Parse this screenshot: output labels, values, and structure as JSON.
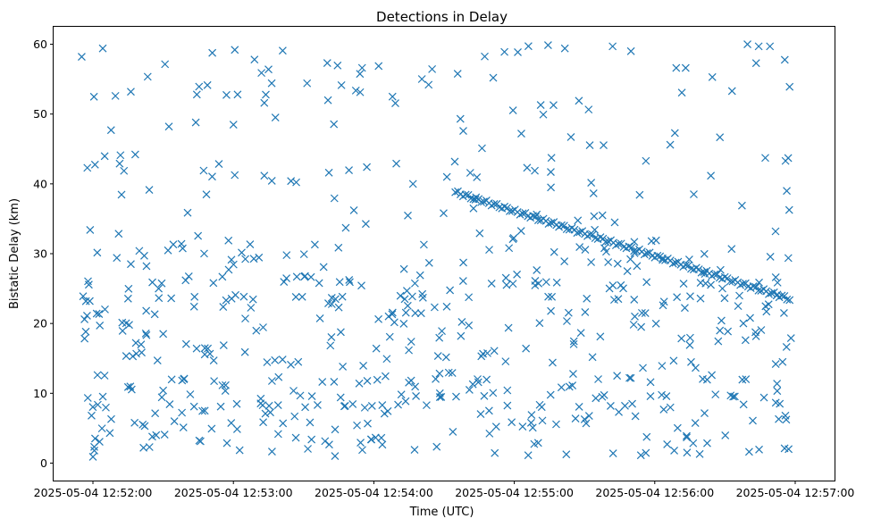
{
  "chart_data": {
    "type": "scatter",
    "title": "Detections in Delay",
    "xlabel": "Time (UTC)",
    "ylabel": "Bistatic Delay (km)",
    "marker": "x",
    "color": "#1f77b4",
    "x_unit": "minutes after 2025-05-04 12:51:00 UTC",
    "xlim": [
      0.72,
      6.28
    ],
    "ylim": [
      -2.5,
      62.5
    ],
    "x_ticks": [
      {
        "value": 1,
        "label": "2025-05-04 12:52:00"
      },
      {
        "value": 2,
        "label": "2025-05-04 12:53:00"
      },
      {
        "value": 3,
        "label": "2025-05-04 12:54:00"
      },
      {
        "value": 4,
        "label": "2025-05-04 12:55:00"
      },
      {
        "value": 5,
        "label": "2025-05-04 12:56:00"
      },
      {
        "value": 6,
        "label": "2025-05-04 12:57:00"
      }
    ],
    "y_ticks": [
      {
        "value": 0,
        "label": "0"
      },
      {
        "value": 10,
        "label": "10"
      },
      {
        "value": 20,
        "label": "20"
      },
      {
        "value": 30,
        "label": "30"
      },
      {
        "value": 40,
        "label": "40"
      },
      {
        "value": 50,
        "label": "50"
      },
      {
        "value": 60,
        "label": "60"
      }
    ],
    "target_track": {
      "description": "dense linear track of detections",
      "start": [
        3.58,
        38.8
      ],
      "end": [
        5.96,
        23.5
      ],
      "count": 130
    },
    "clutter_seed": 20250504,
    "clutter_count": 560,
    "points": [
      [
        0.92,
        58.2
      ],
      [
        0.99,
        6.8
      ],
      [
        1.07,
        59.4
      ],
      [
        1.16,
        52.6
      ],
      [
        1.27,
        53.2
      ],
      [
        1.36,
        2.2
      ],
      [
        1.45,
        4.0
      ],
      [
        0.93,
        23.9
      ],
      [
        0.94,
        20.6
      ],
      [
        0.95,
        23.2
      ],
      [
        0.96,
        42.3
      ],
      [
        0.98,
        33.4
      ],
      [
        1.01,
        1.8
      ],
      [
        1.0,
        0.9
      ],
      [
        1.12,
        4.3
      ],
      [
        1.13,
        6.3
      ],
      [
        1.17,
        29.4
      ],
      [
        1.19,
        42.9
      ],
      [
        1.25,
        10.9
      ],
      [
        1.27,
        28.5
      ],
      [
        1.33,
        30.4
      ],
      [
        1.5,
        10.4
      ],
      [
        1.58,
        6.0
      ],
      [
        1.63,
        31.4
      ],
      [
        1.72,
        8.1
      ],
      [
        1.74,
        52.8
      ],
      [
        1.86,
        14.7
      ],
      [
        1.91,
        8.1
      ],
      [
        2.01,
        59.2
      ],
      [
        2.15,
        57.8
      ],
      [
        2.22,
        51.6
      ],
      [
        2.25,
        56.4
      ],
      [
        2.41,
        40.4
      ],
      [
        2.58,
        31.3
      ],
      [
        2.68,
        41.6
      ],
      [
        2.75,
        22.3
      ],
      [
        2.8,
        33.7
      ],
      [
        2.88,
        5.4
      ],
      [
        2.98,
        3.4
      ],
      [
        3.06,
        8.3
      ],
      [
        3.16,
        42.9
      ],
      [
        3.22,
        23.5
      ],
      [
        3.3,
        9.6
      ],
      [
        3.39,
        54.2
      ],
      [
        3.47,
        10.0
      ],
      [
        3.52,
        41.0
      ],
      [
        3.62,
        18.2
      ],
      [
        3.77,
        45.1
      ],
      [
        3.85,
        55.2
      ],
      [
        3.93,
        58.9
      ],
      [
        4.05,
        47.2
      ],
      [
        4.17,
        2.9
      ],
      [
        4.26,
        41.7
      ],
      [
        4.36,
        59.4
      ],
      [
        4.46,
        51.9
      ],
      [
        4.58,
        9.3
      ],
      [
        4.7,
        59.7
      ],
      [
        4.82,
        12.2
      ],
      [
        4.97,
        11.6
      ],
      [
        5.11,
        45.6
      ],
      [
        5.22,
        56.6
      ],
      [
        5.32,
        1.3
      ],
      [
        5.41,
        55.3
      ],
      [
        5.55,
        53.3
      ],
      [
        5.66,
        60.0
      ],
      [
        5.74,
        59.7
      ],
      [
        5.82,
        59.7
      ],
      [
        5.86,
        33.2
      ],
      [
        5.89,
        8.5
      ],
      [
        5.96,
        53.9
      ],
      [
        5.97,
        17.9
      ],
      [
        5.95,
        43.7
      ],
      [
        5.94,
        39.0
      ],
      [
        5.92,
        21.5
      ],
      [
        5.91,
        14.5
      ],
      [
        5.93,
        6.8
      ]
    ]
  }
}
